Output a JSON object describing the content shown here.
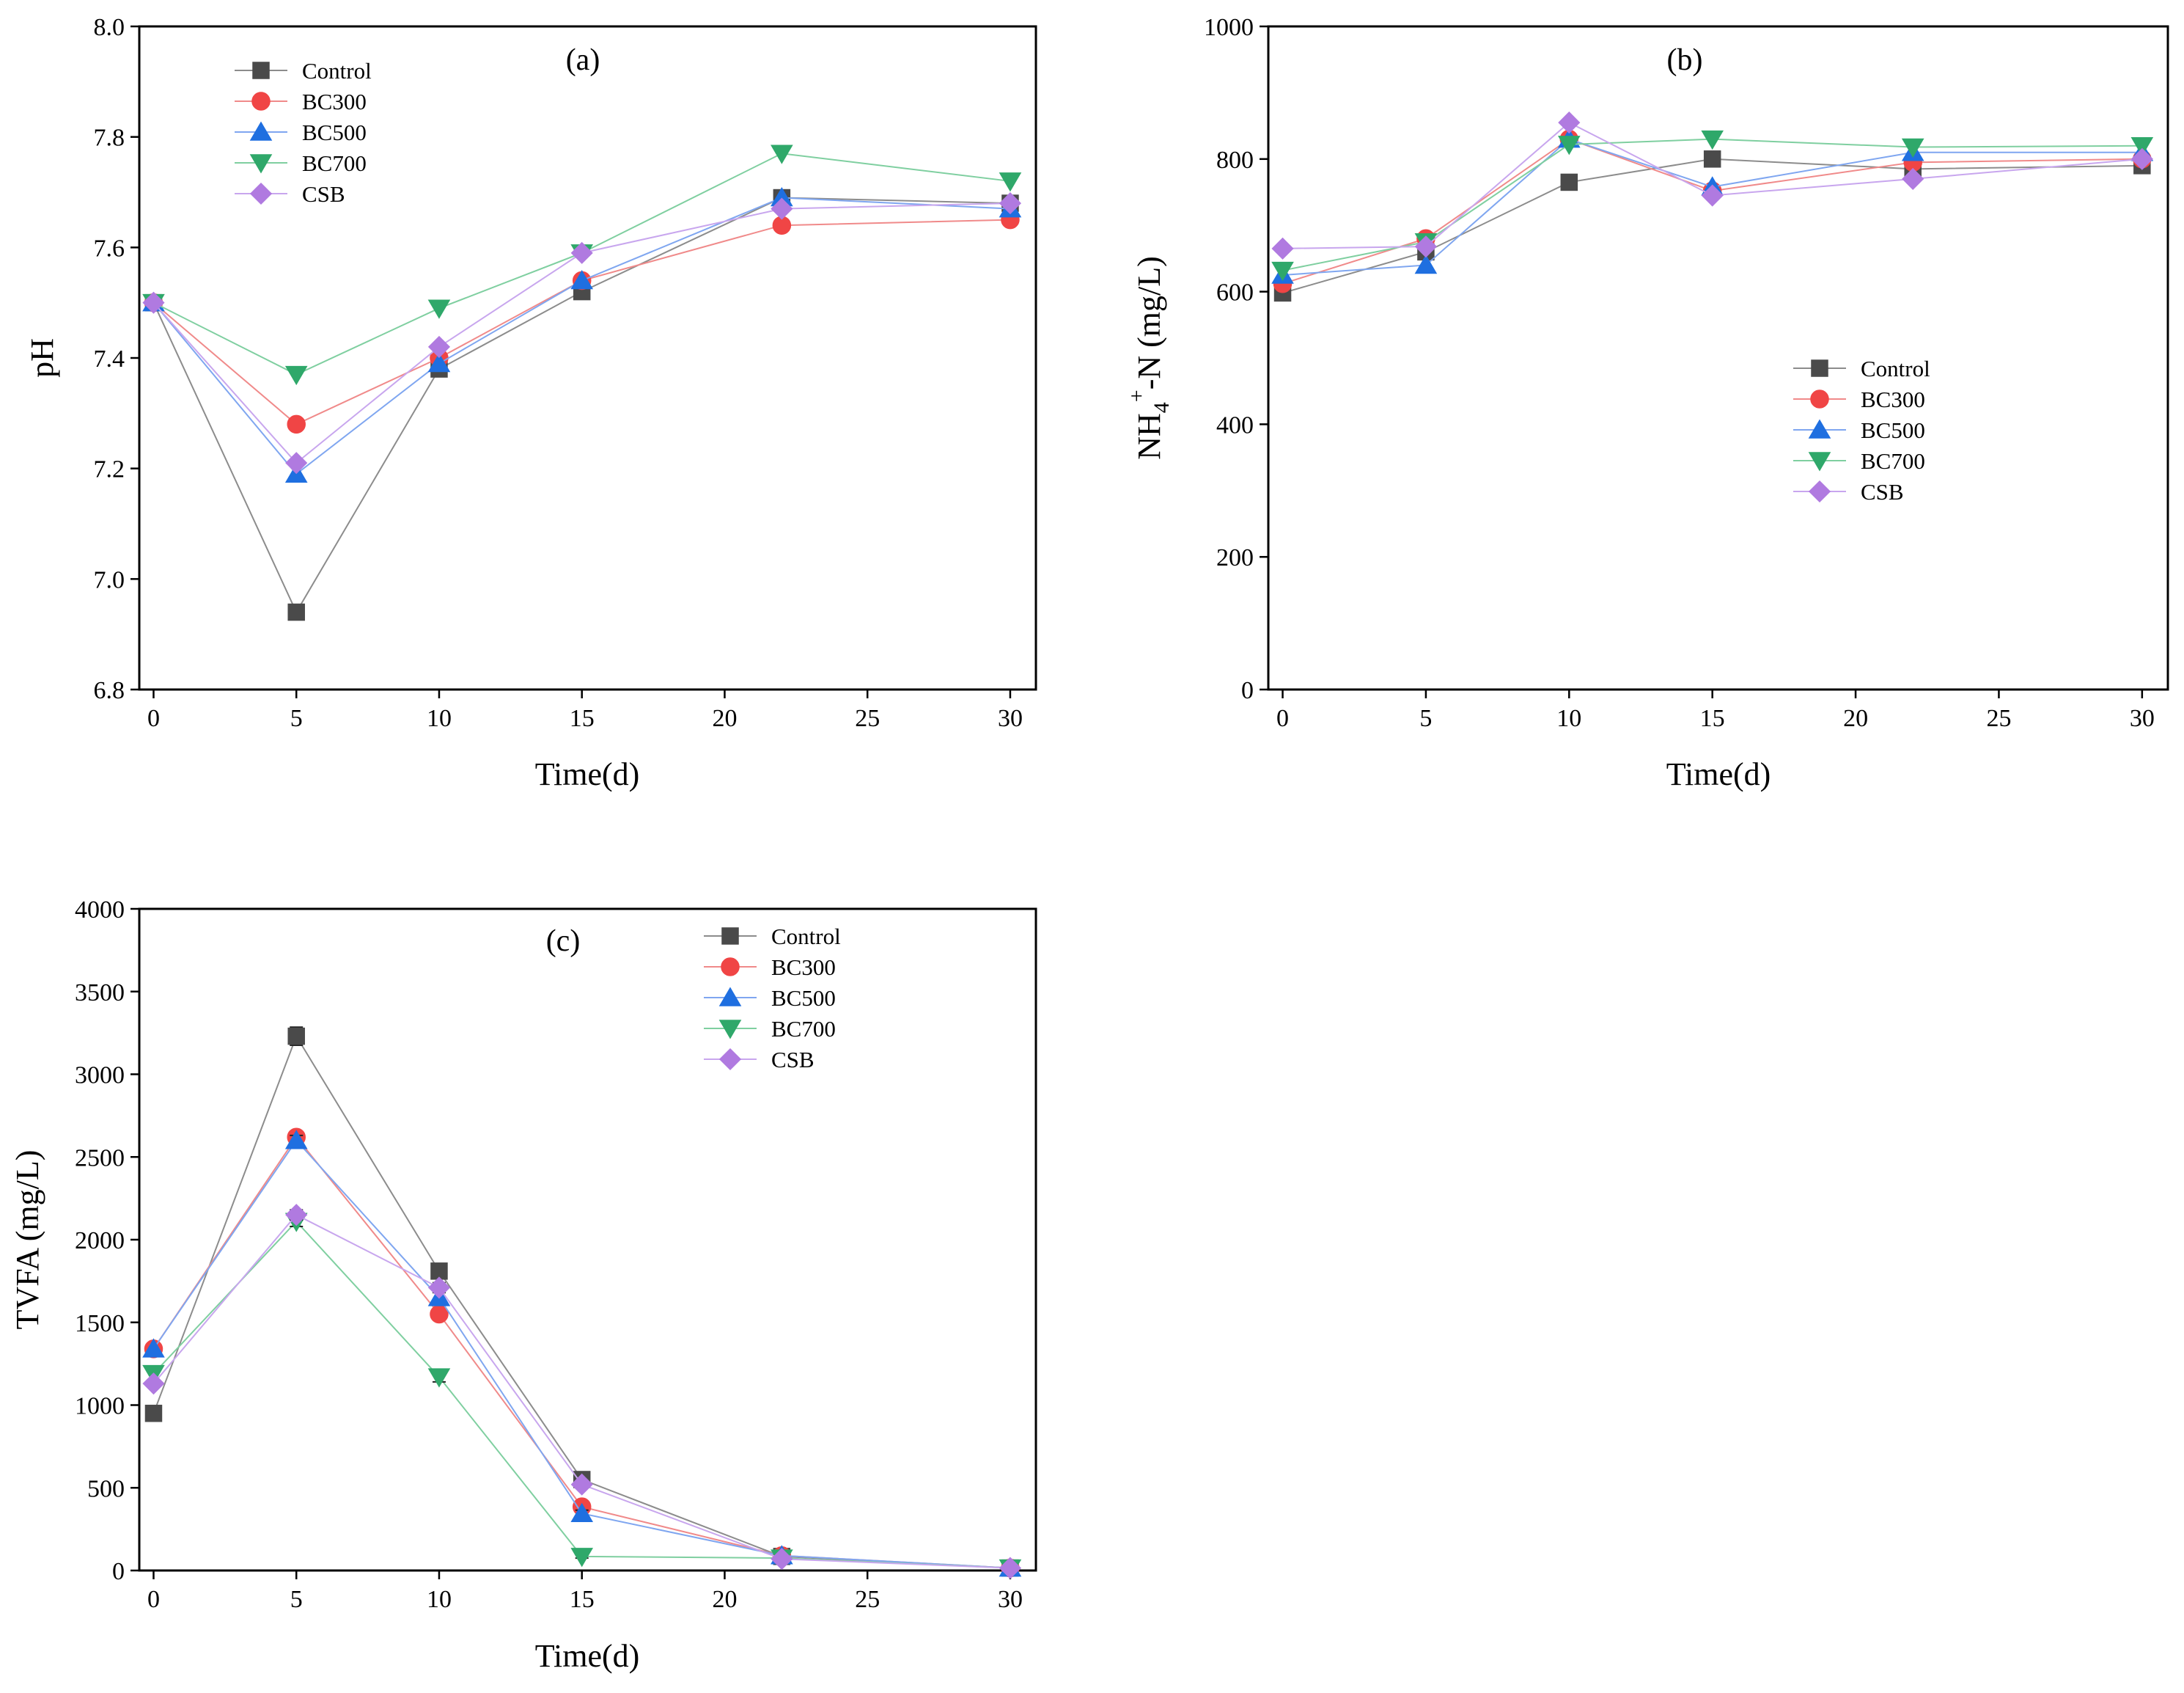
{
  "figure": {
    "series_styles": [
      {
        "name": "Control",
        "color": "#4a4a4a",
        "line": "#8c8c8c",
        "marker": "square"
      },
      {
        "name": "BC300",
        "color": "#f04545",
        "line": "#f08a8a",
        "marker": "circle"
      },
      {
        "name": "BC500",
        "color": "#1f6fe0",
        "line": "#7fa6f0",
        "marker": "triangle-up"
      },
      {
        "name": "BC700",
        "color": "#2fa86a",
        "line": "#7fcfa0",
        "marker": "triangle-down"
      },
      {
        "name": "CSB",
        "color": "#b07ae0",
        "line": "#c8a6ee",
        "marker": "diamond"
      }
    ]
  },
  "chart_data": [
    {
      "id": "a",
      "type": "line",
      "panel_label": "(a)",
      "title": "",
      "xlabel": "Time(d)",
      "ylabel": "pH",
      "xlim": [
        -0.5,
        30.9
      ],
      "ylim": [
        6.8,
        8.0
      ],
      "xticks": [
        0,
        5,
        10,
        15,
        20,
        25,
        30
      ],
      "yticks": [
        6.8,
        7.0,
        7.2,
        7.4,
        7.6,
        7.8,
        8.0
      ],
      "ytick_labels": [
        "6.8",
        "7.0",
        "7.2",
        "7.4",
        "7.6",
        "7.8",
        "8.0"
      ],
      "x": [
        0,
        5,
        10,
        15,
        22,
        30
      ],
      "legend_position": "top-left",
      "series": [
        {
          "name": "Control",
          "values": [
            7.5,
            6.94,
            7.38,
            7.52,
            7.69,
            7.68
          ]
        },
        {
          "name": "BC300",
          "values": [
            7.5,
            7.28,
            7.4,
            7.54,
            7.64,
            7.65
          ]
        },
        {
          "name": "BC500",
          "values": [
            7.5,
            7.19,
            7.39,
            7.54,
            7.69,
            7.67
          ]
        },
        {
          "name": "BC700",
          "values": [
            7.5,
            7.37,
            7.49,
            7.59,
            7.77,
            7.72
          ]
        },
        {
          "name": "CSB",
          "values": [
            7.5,
            7.21,
            7.42,
            7.59,
            7.67,
            7.68
          ]
        }
      ]
    },
    {
      "id": "b",
      "type": "line",
      "panel_label": "(b)",
      "title": "",
      "xlabel": "Time(d)",
      "ylabel": "NH4+-N (mg/L)",
      "xlim": [
        -0.5,
        30.9
      ],
      "ylim": [
        0,
        1000
      ],
      "xticks": [
        0,
        5,
        10,
        15,
        20,
        25,
        30
      ],
      "yticks": [
        0,
        200,
        400,
        600,
        800,
        1000
      ],
      "ytick_labels": [
        "0",
        "200",
        "400",
        "600",
        "800",
        "1000"
      ],
      "x": [
        0,
        5,
        10,
        15,
        22,
        30
      ],
      "legend_position": "center-right",
      "series": [
        {
          "name": "Control",
          "values": [
            598,
            660,
            765,
            800,
            785,
            790
          ]
        },
        {
          "name": "BC300",
          "values": [
            612,
            680,
            830,
            752,
            795,
            800
          ]
        },
        {
          "name": "BC500",
          "values": [
            625,
            640,
            830,
            758,
            810,
            810
          ]
        },
        {
          "name": "BC700",
          "values": [
            632,
            675,
            822,
            830,
            818,
            820
          ]
        },
        {
          "name": "CSB",
          "values": [
            665,
            668,
            855,
            745,
            770,
            800
          ]
        }
      ]
    },
    {
      "id": "c",
      "type": "line",
      "panel_label": "(c)",
      "title": "",
      "xlabel": "Time(d)",
      "ylabel": "TVFA (mg/L)",
      "xlim": [
        -0.5,
        30.9
      ],
      "ylim": [
        0,
        4000
      ],
      "xticks": [
        0,
        5,
        10,
        15,
        20,
        25,
        30
      ],
      "yticks": [
        0,
        500,
        1000,
        1500,
        2000,
        2500,
        3000,
        3500,
        4000
      ],
      "ytick_labels": [
        "0",
        "500",
        "1000",
        "1500",
        "2000",
        "2500",
        "3000",
        "3500",
        "4000"
      ],
      "x": [
        0,
        5,
        10,
        15,
        22,
        30
      ],
      "legend_position": "top-right",
      "series": [
        {
          "name": "Control",
          "values": [
            950,
            3230,
            1810,
            550,
            85,
            15
          ],
          "errors": [
            0,
            55,
            40,
            25,
            10,
            5
          ]
        },
        {
          "name": "BC300",
          "values": [
            1340,
            2620,
            1550,
            385,
            90,
            15
          ],
          "errors": [
            0,
            30,
            30,
            20,
            10,
            5
          ]
        },
        {
          "name": "BC500",
          "values": [
            1340,
            2600,
            1650,
            345,
            90,
            15
          ],
          "errors": [
            0,
            30,
            30,
            20,
            10,
            5
          ]
        },
        {
          "name": "BC700",
          "values": [
            1190,
            2110,
            1170,
            85,
            75,
            15
          ],
          "errors": [
            0,
            30,
            30,
            10,
            10,
            5
          ]
        },
        {
          "name": "CSB",
          "values": [
            1130,
            2150,
            1710,
            520,
            70,
            15
          ],
          "errors": [
            0,
            30,
            30,
            20,
            10,
            5
          ]
        }
      ]
    }
  ]
}
